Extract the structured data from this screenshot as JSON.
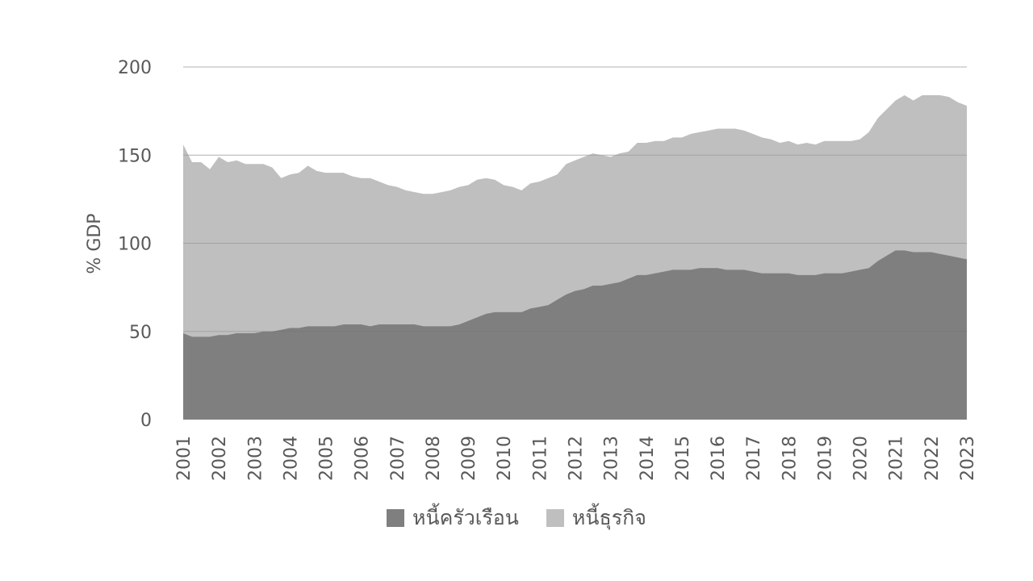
{
  "chart_data": {
    "type": "area",
    "stacked": true,
    "title": "",
    "xlabel": "",
    "ylabel": "% GDP",
    "ylim": [
      0,
      200
    ],
    "yticks": [
      0,
      50,
      100,
      150,
      200
    ],
    "grid": true,
    "legend_position": "bottom",
    "x_tick_labels": [
      "2001",
      "2002",
      "2003",
      "2004",
      "2005",
      "2006",
      "2007",
      "2008",
      "2009",
      "2010",
      "2011",
      "2012",
      "2013",
      "2014",
      "2015",
      "2016",
      "2017",
      "2018",
      "2019",
      "2020",
      "2021",
      "2022",
      "2023"
    ],
    "x_start": 2001,
    "x_end": 2023,
    "x": [
      2001.0,
      2001.25,
      2001.5,
      2001.75,
      2002.0,
      2002.25,
      2002.5,
      2002.75,
      2003.0,
      2003.25,
      2003.5,
      2003.75,
      2004.0,
      2004.25,
      2004.5,
      2004.75,
      2005.0,
      2005.25,
      2005.5,
      2005.75,
      2006.0,
      2006.25,
      2006.5,
      2006.75,
      2007.0,
      2007.25,
      2007.5,
      2007.75,
      2008.0,
      2008.25,
      2008.5,
      2008.75,
      2009.0,
      2009.25,
      2009.5,
      2009.75,
      2010.0,
      2010.25,
      2010.5,
      2010.75,
      2011.0,
      2011.25,
      2011.5,
      2011.75,
      2012.0,
      2012.25,
      2012.5,
      2012.75,
      2013.0,
      2013.25,
      2013.5,
      2013.75,
      2014.0,
      2014.25,
      2014.5,
      2014.75,
      2015.0,
      2015.25,
      2015.5,
      2015.75,
      2016.0,
      2016.25,
      2016.5,
      2016.75,
      2017.0,
      2017.25,
      2017.5,
      2017.75,
      2018.0,
      2018.25,
      2018.5,
      2018.75,
      2019.0,
      2019.25,
      2019.5,
      2019.75,
      2020.0,
      2020.25,
      2020.5,
      2020.75,
      2021.0,
      2021.25,
      2021.5,
      2021.75,
      2022.0,
      2022.25,
      2022.5,
      2022.75,
      2023.0
    ],
    "series": [
      {
        "name": "หนี้ครัวเรือน",
        "color": "#7f7f7f",
        "values": [
          49,
          47,
          47,
          47,
          48,
          48,
          49,
          49,
          49,
          50,
          50,
          51,
          52,
          52,
          53,
          53,
          53,
          53,
          54,
          54,
          54,
          53,
          54,
          54,
          54,
          54,
          54,
          53,
          53,
          53,
          53,
          54,
          56,
          58,
          60,
          61,
          61,
          61,
          61,
          63,
          64,
          65,
          68,
          71,
          73,
          74,
          76,
          76,
          77,
          78,
          80,
          82,
          82,
          83,
          84,
          85,
          85,
          85,
          86,
          86,
          86,
          85,
          85,
          85,
          84,
          83,
          83,
          83,
          83,
          82,
          82,
          82,
          83,
          83,
          83,
          84,
          85,
          86,
          90,
          93,
          96,
          96,
          95,
          95,
          95,
          94,
          93,
          92,
          91
        ]
      },
      {
        "name": "หนี้ธุรกิจ",
        "color": "#bfbfbf",
        "values": [
          107,
          99,
          99,
          95,
          101,
          98,
          98,
          96,
          96,
          95,
          93,
          86,
          87,
          88,
          91,
          88,
          87,
          87,
          86,
          84,
          83,
          84,
          81,
          79,
          78,
          76,
          75,
          75,
          75,
          76,
          77,
          78,
          77,
          78,
          77,
          75,
          72,
          71,
          69,
          71,
          71,
          72,
          71,
          74,
          74,
          75,
          75,
          74,
          72,
          73,
          72,
          75,
          75,
          75,
          74,
          75,
          75,
          77,
          77,
          78,
          79,
          80,
          80,
          79,
          78,
          77,
          76,
          74,
          75,
          74,
          75,
          74,
          75,
          75,
          75,
          74,
          74,
          77,
          81,
          83,
          85,
          88,
          86,
          89,
          89,
          90,
          90,
          88,
          87
        ]
      }
    ]
  },
  "legend": {
    "items": [
      {
        "label": "หนี้ครัวเรือน",
        "color": "#7f7f7f"
      },
      {
        "label": "หนี้ธุรกิจ",
        "color": "#bfbfbf"
      }
    ]
  },
  "axis": {
    "y_title": "% GDP",
    "y_tick_labels": [
      "0",
      "50",
      "100",
      "150",
      "200"
    ]
  }
}
